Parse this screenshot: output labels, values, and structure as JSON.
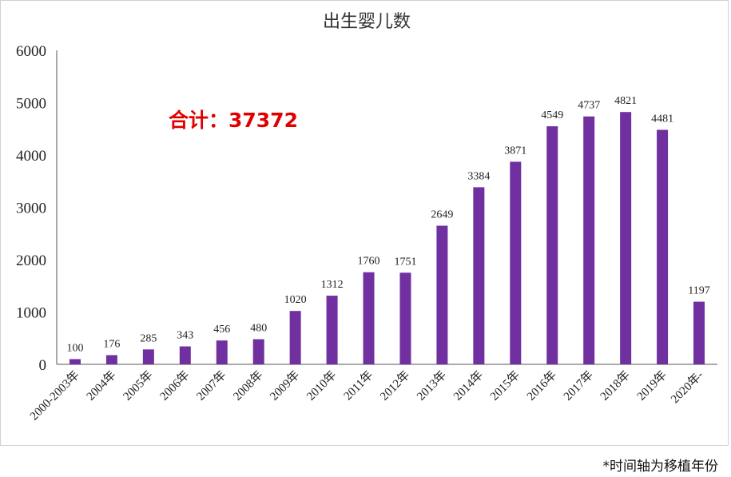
{
  "chart_data": {
    "type": "bar",
    "title": "出生婴儿数",
    "xlabel": "",
    "ylabel": "",
    "categories": [
      "2000-2003年",
      "2004年",
      "2005年",
      "2006年",
      "2007年",
      "2008年",
      "2009年",
      "2010年",
      "2011年",
      "2012年",
      "2013年",
      "2014年",
      "2015年",
      "2016年",
      "2017年",
      "2018年",
      "2019年",
      "2020年-"
    ],
    "values": [
      100,
      176,
      285,
      343,
      456,
      480,
      1020,
      1312,
      1760,
      1751,
      2649,
      3384,
      3871,
      4549,
      4737,
      4821,
      4481,
      1197
    ],
    "ylim": [
      0,
      6000
    ],
    "yticks": [
      0,
      1000,
      2000,
      3000,
      4000,
      5000,
      6000
    ],
    "grid": false,
    "legend": "none",
    "bar_color": "#7030a0",
    "annotation": "合计：37372"
  },
  "footnote": "*时间轴为移植年份"
}
